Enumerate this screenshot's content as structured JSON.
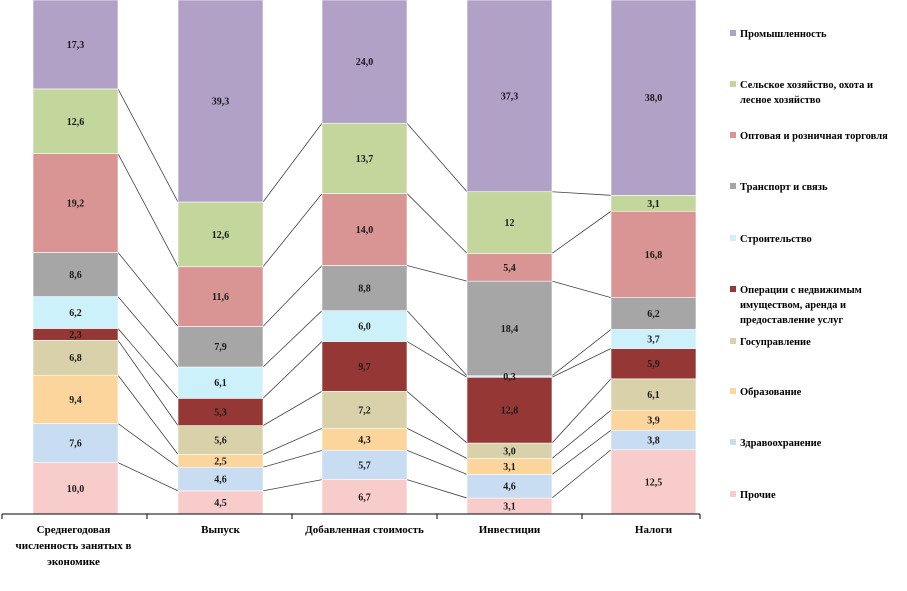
{
  "chart_data": {
    "type": "bar",
    "stacked": true,
    "percent": true,
    "categories": [
      [
        "Среднегодовая",
        "численность занятых в",
        "экономике"
      ],
      [
        "Выпуск"
      ],
      [
        "Добавленная стоимость"
      ],
      [
        "Инвестиции"
      ],
      [
        "Налоги"
      ]
    ],
    "series": [
      {
        "name": "Прочие",
        "color": "#f9cccc",
        "values": [
          10.0,
          4.5,
          6.7,
          3.1,
          12.5
        ],
        "labels": [
          "10,0",
          "4,5",
          "6,7",
          "3,1",
          "12,5"
        ]
      },
      {
        "name": "Здравоохранение",
        "color": "#c8dcf2",
        "values": [
          7.6,
          4.6,
          5.7,
          4.6,
          3.8
        ],
        "labels": [
          "7,6",
          "4,6",
          "5,7",
          "4,6",
          "3,8"
        ]
      },
      {
        "name": "Образование",
        "color": "#fbd59c",
        "values": [
          9.4,
          2.5,
          4.3,
          3.1,
          3.9
        ],
        "labels": [
          "9,4",
          "2,5",
          "4,3",
          "3,1",
          "3,9"
        ]
      },
      {
        "name": "Госуправление",
        "color": "#d9d1aa",
        "values": [
          6.8,
          5.6,
          7.2,
          3.0,
          6.1
        ],
        "labels": [
          "6,8",
          "5,6",
          "7,2",
          "3,0",
          "6,1"
        ]
      },
      {
        "name": "Операции с недвижимым имуществом, аренда и предоставление услуг",
        "color": "#953735",
        "values": [
          2.3,
          5.3,
          9.7,
          12.8,
          5.9
        ],
        "labels": [
          "2,3",
          "5,3",
          "9,7",
          "12,8",
          "5,9"
        ]
      },
      {
        "name": "Строительство",
        "color": "#ccf1fb",
        "values": [
          6.2,
          6.1,
          6.0,
          0.3,
          3.7
        ],
        "labels": [
          "6,2",
          "6,1",
          "6,0",
          "0,3",
          "3,7"
        ]
      },
      {
        "name": "Транспорт и связь",
        "color": "#a6a6a6",
        "values": [
          8.6,
          7.9,
          8.8,
          18.4,
          6.2
        ],
        "labels": [
          "8,6",
          "7,9",
          "8,8",
          "18,4",
          "6,2"
        ]
      },
      {
        "name": "Оптовая и розничная торговля",
        "color": "#d99594",
        "values": [
          19.2,
          11.6,
          14.0,
          5.4,
          16.8
        ],
        "labels": [
          "19,2",
          "11,6",
          "14,0",
          "5,4",
          "16,8"
        ]
      },
      {
        "name": "Сельское хозяйство, охота и лесное хозяйство",
        "color": "#c3d69b",
        "values": [
          12.6,
          12.6,
          13.7,
          12.0,
          3.1
        ],
        "labels": [
          "12,6",
          "12,6",
          "13,7",
          "12",
          "3,1"
        ]
      },
      {
        "name": "Промышленность",
        "color": "#b2a1c7",
        "values": [
          17.3,
          39.3,
          24.0,
          37.3,
          38.0
        ],
        "labels": [
          "17,3",
          "39,3",
          "24,0",
          "37,3",
          "38,0"
        ]
      }
    ],
    "legend": {
      "placement": "right",
      "items": [
        {
          "lines": [
            "Промышленность"
          ],
          "color": "#b2a1c7"
        },
        {
          "lines": [
            "Сельское хозяйство, охота и",
            "лесное хозяйство"
          ],
          "color": "#c3d69b"
        },
        {
          "lines": [
            "Оптовая и розничная торговля"
          ],
          "color": "#d99594"
        },
        {
          "lines": [
            "Транспорт и связь"
          ],
          "color": "#a6a6a6"
        },
        {
          "lines": [
            "Строительство"
          ],
          "color": "#ccf1fb"
        },
        {
          "lines": [
            "Операции с недвижимым",
            "имуществом, аренда и",
            "предоставление услуг"
          ],
          "color": "#953735"
        },
        {
          "lines": [
            "Госуправление"
          ],
          "color": "#d9d1aa"
        },
        {
          "lines": [
            "Образование"
          ],
          "color": "#fbd59c"
        },
        {
          "lines": [
            "Здравоохранение"
          ],
          "color": "#c8dcf2"
        },
        {
          "lines": [
            "Прочие"
          ],
          "color": "#f9cccc"
        }
      ]
    },
    "ylim": [
      0,
      100
    ],
    "grid": false,
    "series_lines": true
  }
}
